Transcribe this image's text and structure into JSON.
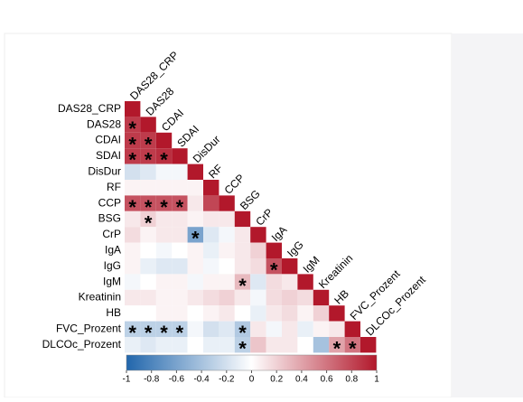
{
  "chart_data": {
    "type": "heatmap",
    "variables": [
      "DAS28_CRP",
      "DAS28",
      "CDAI",
      "SDAI",
      "DisDur",
      "RF",
      "CCP",
      "BSG",
      "CrP",
      "IgA",
      "IgG",
      "IgM",
      "Kreatinin",
      "HB",
      "FVC_Prozent",
      "DLCOc_Prozent"
    ],
    "values": [
      [
        1,
        null,
        null,
        null,
        null,
        null,
        null,
        null,
        null,
        null,
        null,
        null,
        null,
        null,
        null,
        null
      ],
      [
        0.85,
        1,
        null,
        null,
        null,
        null,
        null,
        null,
        null,
        null,
        null,
        null,
        null,
        null,
        null,
        null
      ],
      [
        0.85,
        0.85,
        1,
        null,
        null,
        null,
        null,
        null,
        null,
        null,
        null,
        null,
        null,
        null,
        null,
        null
      ],
      [
        0.85,
        0.85,
        0.9,
        1,
        null,
        null,
        null,
        null,
        null,
        null,
        null,
        null,
        null,
        null,
        null,
        null
      ],
      [
        -0.2,
        -0.15,
        -0.05,
        -0.05,
        1,
        null,
        null,
        null,
        null,
        null,
        null,
        null,
        null,
        null,
        null,
        null
      ],
      [
        0.05,
        0.05,
        0.05,
        0.05,
        0.05,
        1,
        null,
        null,
        null,
        null,
        null,
        null,
        null,
        null,
        null,
        null
      ],
      [
        0.75,
        0.75,
        0.75,
        0.75,
        0.1,
        0.8,
        1,
        null,
        null,
        null,
        null,
        null,
        null,
        null,
        null,
        null
      ],
      [
        0.1,
        0.2,
        0.1,
        0.1,
        0.05,
        0.1,
        0.1,
        1,
        null,
        null,
        null,
        null,
        null,
        null,
        null,
        null
      ],
      [
        0.15,
        0.05,
        0.1,
        0.1,
        -0.6,
        -0.15,
        -0.05,
        0.1,
        1,
        null,
        null,
        null,
        null,
        null,
        null,
        null
      ],
      [
        0.05,
        0,
        -0.05,
        0,
        0.05,
        -0.1,
        0.05,
        0.1,
        0.2,
        1,
        null,
        null,
        null,
        null,
        null,
        null
      ],
      [
        0.05,
        -0.1,
        -0.15,
        -0.15,
        0.05,
        -0.05,
        0,
        0.1,
        0.15,
        0.75,
        1,
        null,
        null,
        null,
        null,
        null
      ],
      [
        -0.05,
        0,
        0.05,
        0.05,
        -0.05,
        0.05,
        0.05,
        0.3,
        -0.15,
        0.15,
        0.1,
        1,
        null,
        null,
        null,
        null
      ],
      [
        0.1,
        0.1,
        0.05,
        0.05,
        0.1,
        0.15,
        0.2,
        0.1,
        -0.05,
        0.15,
        0.2,
        0.15,
        1,
        null,
        null,
        null
      ],
      [
        0,
        0,
        0.05,
        0.05,
        0,
        0.05,
        0.1,
        0,
        -0.1,
        0.1,
        0.15,
        0.05,
        0.2,
        1,
        null,
        null
      ],
      [
        -0.3,
        -0.3,
        -0.3,
        -0.3,
        -0.05,
        -0.2,
        -0.15,
        -0.35,
        0.1,
        -0.05,
        0.1,
        -0.1,
        0.05,
        0.1,
        1,
        null
      ],
      [
        -0.1,
        -0.15,
        -0.1,
        -0.1,
        0,
        -0.1,
        -0.1,
        -0.3,
        0.25,
        0.1,
        0.1,
        0,
        -0.4,
        0.4,
        0.6,
        1
      ]
    ],
    "annotations": [
      [
        null,
        null,
        null,
        null,
        null,
        null,
        null,
        null,
        null,
        null,
        null,
        null,
        null,
        null,
        null,
        null
      ],
      [
        "*",
        null,
        null,
        null,
        null,
        null,
        null,
        null,
        null,
        null,
        null,
        null,
        null,
        null,
        null,
        null
      ],
      [
        "*",
        "*",
        null,
        null,
        null,
        null,
        null,
        null,
        null,
        null,
        null,
        null,
        null,
        null,
        null,
        null
      ],
      [
        "*",
        "*",
        "*",
        null,
        null,
        null,
        null,
        null,
        null,
        null,
        null,
        null,
        null,
        null,
        null,
        null
      ],
      [
        null,
        null,
        null,
        null,
        null,
        null,
        null,
        null,
        null,
        null,
        null,
        null,
        null,
        null,
        null,
        null
      ],
      [
        null,
        null,
        null,
        null,
        null,
        null,
        null,
        null,
        null,
        null,
        null,
        null,
        null,
        null,
        null,
        null
      ],
      [
        "*",
        "*",
        "*",
        "*",
        null,
        null,
        null,
        null,
        null,
        null,
        null,
        null,
        null,
        null,
        null,
        null
      ],
      [
        null,
        "*",
        null,
        null,
        null,
        null,
        null,
        null,
        null,
        null,
        null,
        null,
        null,
        null,
        null,
        null
      ],
      [
        null,
        null,
        null,
        null,
        "*",
        null,
        null,
        null,
        null,
        null,
        null,
        null,
        null,
        null,
        null,
        null
      ],
      [
        null,
        null,
        null,
        null,
        null,
        null,
        null,
        null,
        null,
        null,
        null,
        null,
        null,
        null,
        null,
        null
      ],
      [
        null,
        null,
        null,
        null,
        null,
        null,
        null,
        null,
        null,
        "*",
        null,
        null,
        null,
        null,
        null,
        null
      ],
      [
        null,
        null,
        null,
        null,
        null,
        null,
        null,
        "*",
        null,
        null,
        null,
        null,
        null,
        null,
        null,
        null
      ],
      [
        null,
        null,
        null,
        null,
        null,
        null,
        null,
        null,
        null,
        null,
        null,
        null,
        null,
        null,
        null,
        null
      ],
      [
        null,
        null,
        null,
        null,
        null,
        null,
        null,
        null,
        null,
        null,
        null,
        null,
        null,
        null,
        null,
        null
      ],
      [
        "*",
        "*",
        "*",
        "*",
        null,
        null,
        null,
        "*",
        null,
        null,
        null,
        null,
        null,
        null,
        null,
        null
      ],
      [
        null,
        null,
        null,
        null,
        null,
        null,
        null,
        "*",
        null,
        null,
        null,
        null,
        null,
        "*",
        "*",
        null
      ]
    ],
    "zlim": [
      -1,
      1
    ],
    "zticks": [
      -1,
      -0.8,
      -0.6,
      -0.4,
      -0.2,
      0,
      0.2,
      0.4,
      0.6,
      0.8,
      1
    ],
    "colors": {
      "low": "#2166ac",
      "mid": "#ffffff",
      "high": "#b2182b"
    }
  }
}
